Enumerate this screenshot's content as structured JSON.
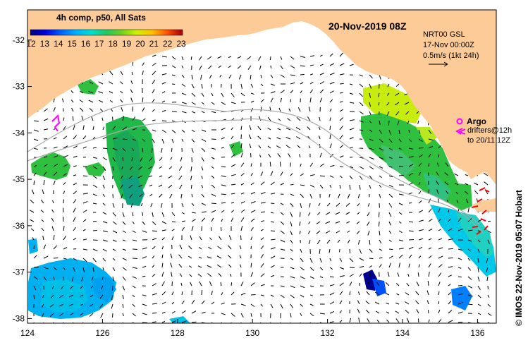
{
  "title": "20-Nov-2019 08Z",
  "colorbar": {
    "title": "4h comp, p50, All Sats",
    "labels": [
      "12",
      "13",
      "14",
      "15",
      "16",
      "17",
      "18",
      "19",
      "20",
      "21",
      "22",
      "23"
    ],
    "colors": [
      "#000080",
      "#0000d8",
      "#0050ff",
      "#00a0ff",
      "#00e0f0",
      "#20d090",
      "#30c040",
      "#90e020",
      "#e0f000",
      "#ffc000",
      "#ff7000",
      "#e02000",
      "#900000"
    ]
  },
  "legend": {
    "product": "NRT00 GSL",
    "date": "17-Nov 00:00Z",
    "scale": "0.5m/s (1kt 24h)"
  },
  "argo": {
    "label": "Argo",
    "drifters_line1": "drifters@12h",
    "drifters_line2": "to 20/11 12Z",
    "color": "#ff00ff"
  },
  "credit": "© IMOS 22-Nov-2019 05:07 Hobart",
  "axes": {
    "x_ticks": [
      "124",
      "126",
      "128",
      "130",
      "132",
      "134",
      "136"
    ],
    "x_values": [
      124,
      126,
      128,
      130,
      132,
      134,
      136
    ],
    "y_ticks": [
      "-32",
      "-33",
      "-34",
      "-35",
      "-36",
      "-37",
      "-38"
    ],
    "y_values": [
      -32,
      -33,
      -34,
      -35,
      -36,
      -37,
      -38
    ],
    "lon_range": [
      124,
      136.5
    ],
    "lat_range": [
      -38.1,
      -31.35
    ]
  },
  "colors": {
    "land": "#fccb98",
    "ocean": "#ffffff",
    "drifter": "#ff0000",
    "argo_track": "#ff00ff"
  }
}
